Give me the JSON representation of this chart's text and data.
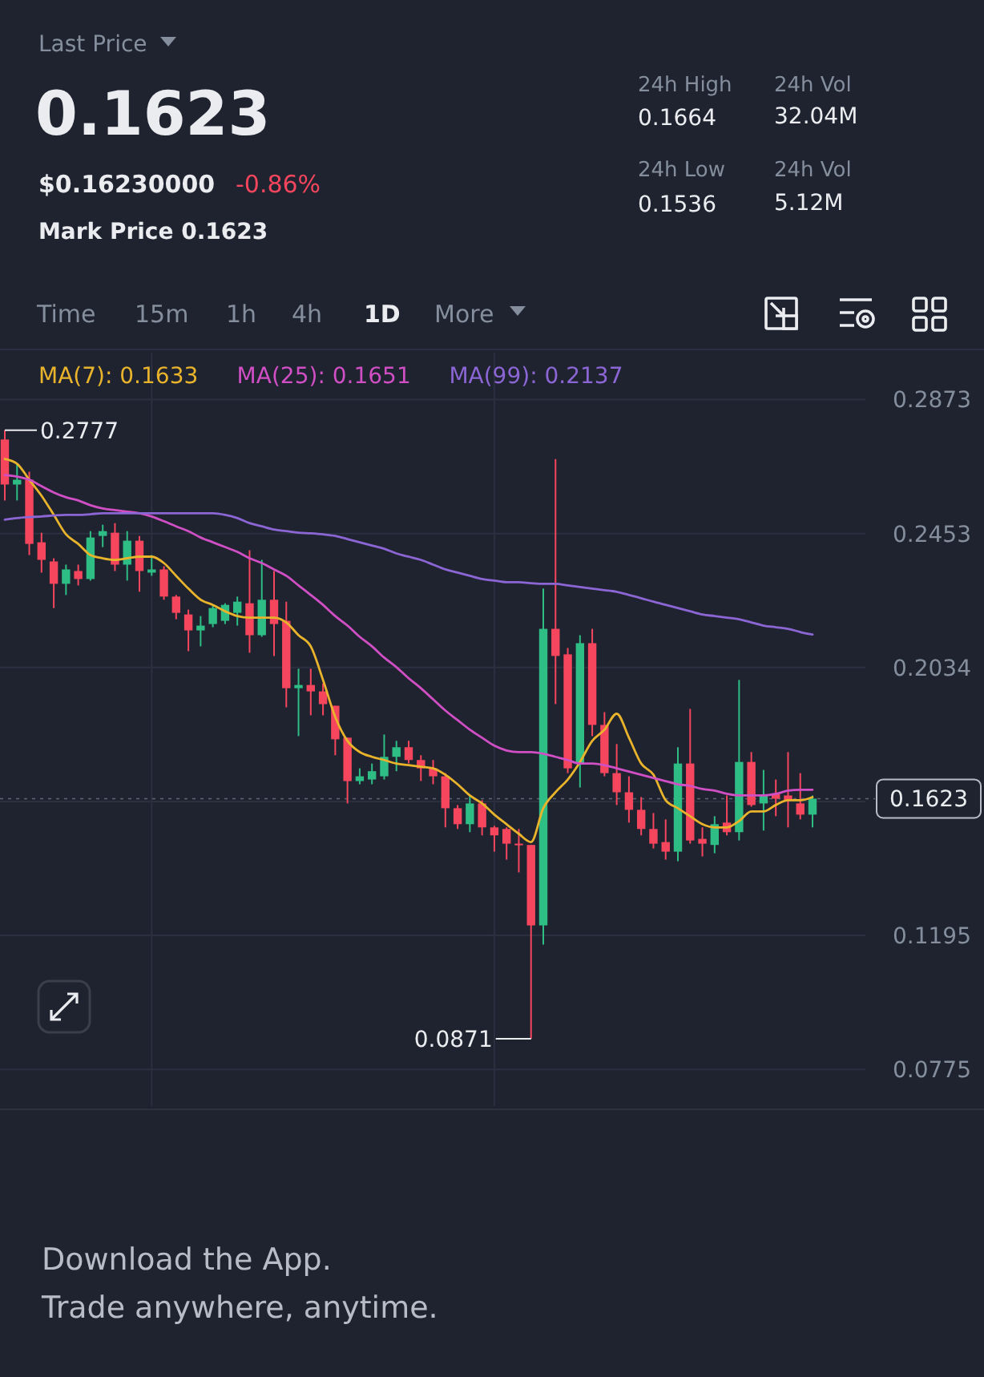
{
  "chart_data": {
    "type": "candlestick",
    "categories": [
      null,
      null,
      null,
      null,
      null,
      null,
      null,
      null,
      null,
      null,
      null,
      null,
      null,
      null,
      null,
      null,
      null,
      null,
      null,
      null,
      null,
      null,
      null,
      null,
      null,
      null,
      null,
      null,
      null,
      null,
      null,
      null,
      null,
      null,
      null,
      null,
      null,
      null,
      null,
      null,
      null,
      null,
      null,
      null,
      null,
      null,
      null,
      null,
      null,
      null,
      null,
      null,
      null,
      null,
      null,
      null,
      null,
      null,
      null,
      null,
      null,
      null,
      null,
      null,
      null,
      null,
      null
    ],
    "ohlc": [
      [
        0.2748,
        0.2777,
        0.2557,
        0.2607
      ],
      [
        0.2607,
        0.2672,
        0.2557,
        0.2622
      ],
      [
        0.2622,
        0.2647,
        0.2386,
        0.2421
      ],
      [
        0.2426,
        0.2456,
        0.2331,
        0.2371
      ],
      [
        0.2366,
        0.2376,
        0.222,
        0.2296
      ],
      [
        0.2296,
        0.2356,
        0.2261,
        0.2341
      ],
      [
        0.2336,
        0.2356,
        0.2291,
        0.2311
      ],
      [
        0.2311,
        0.2461,
        0.2306,
        0.2441
      ],
      [
        0.2446,
        0.2481,
        0.2411,
        0.2461
      ],
      [
        0.2456,
        0.2486,
        0.2336,
        0.2356
      ],
      [
        0.2356,
        0.2461,
        0.2306,
        0.2431
      ],
      [
        0.2431,
        0.2446,
        0.2271,
        0.2336
      ],
      [
        0.2331,
        0.2386,
        0.2321,
        0.2341
      ],
      [
        0.2341,
        0.2351,
        0.2246,
        0.2256
      ],
      [
        0.2256,
        0.2261,
        0.2185,
        0.2205
      ],
      [
        0.22,
        0.2215,
        0.2085,
        0.215
      ],
      [
        0.215,
        0.2195,
        0.21,
        0.2165
      ],
      [
        0.217,
        0.223,
        0.216,
        0.222
      ],
      [
        0.218,
        0.2235,
        0.217,
        0.223
      ],
      [
        0.2205,
        0.2256,
        0.2165,
        0.224
      ],
      [
        0.2235,
        0.2401,
        0.208,
        0.2135
      ],
      [
        0.2135,
        0.2371,
        0.213,
        0.2246
      ],
      [
        0.2246,
        0.2336,
        0.207,
        0.217
      ],
      [
        0.218,
        0.224,
        0.1909,
        0.1969
      ],
      [
        0.1969,
        0.203,
        0.1819,
        0.1979
      ],
      [
        0.1979,
        0.203,
        0.1884,
        0.1959
      ],
      [
        0.1959,
        0.1984,
        0.1884,
        0.1919
      ],
      [
        0.1914,
        0.1914,
        0.1759,
        0.1809
      ],
      [
        0.1814,
        0.1814,
        0.1608,
        0.1678
      ],
      [
        0.1678,
        0.1718,
        0.1668,
        0.1693
      ],
      [
        0.1683,
        0.1733,
        0.1668,
        0.1709
      ],
      [
        0.1693,
        0.1824,
        0.1683,
        0.1754
      ],
      [
        0.1754,
        0.1804,
        0.1709,
        0.1784
      ],
      [
        0.1784,
        0.1804,
        0.1733,
        0.1744
      ],
      [
        0.1744,
        0.1759,
        0.1678,
        0.1718
      ],
      [
        0.1718,
        0.1744,
        0.1668,
        0.1693
      ],
      [
        0.1693,
        0.1703,
        0.1533,
        0.1593
      ],
      [
        0.1593,
        0.1603,
        0.1528,
        0.1543
      ],
      [
        0.1543,
        0.1633,
        0.1518,
        0.1608
      ],
      [
        0.1608,
        0.1618,
        0.1508,
        0.1533
      ],
      [
        0.1533,
        0.1538,
        0.1457,
        0.1508
      ],
      [
        0.1528,
        0.1533,
        0.1432,
        0.1482
      ],
      [
        0.1482,
        0.1528,
        0.1392,
        0.1478
      ],
      [
        0.1478,
        0.1478,
        0.0871,
        0.1226
      ],
      [
        0.1226,
        0.2281,
        0.1166,
        0.2155
      ],
      [
        0.2155,
        0.2687,
        0.1919,
        0.207
      ],
      [
        0.2075,
        0.2095,
        0.1703,
        0.1718
      ],
      [
        0.1733,
        0.2135,
        0.1658,
        0.211
      ],
      [
        0.211,
        0.2155,
        0.1819,
        0.1854
      ],
      [
        0.1854,
        0.1894,
        0.1693,
        0.1703
      ],
      [
        0.1703,
        0.1794,
        0.1603,
        0.1643
      ],
      [
        0.1643,
        0.1693,
        0.1548,
        0.1588
      ],
      [
        0.1588,
        0.1628,
        0.1508,
        0.1528
      ],
      [
        0.1528,
        0.1578,
        0.1467,
        0.1482
      ],
      [
        0.1487,
        0.1558,
        0.1432,
        0.1457
      ],
      [
        0.1457,
        0.1784,
        0.1427,
        0.1733
      ],
      [
        0.1733,
        0.1904,
        0.1482,
        0.1492
      ],
      [
        0.1497,
        0.1533,
        0.1442,
        0.1482
      ],
      [
        0.1478,
        0.1568,
        0.1452,
        0.1543
      ],
      [
        0.1548,
        0.1633,
        0.1508,
        0.1518
      ],
      [
        0.1518,
        0.1995,
        0.1492,
        0.1738
      ],
      [
        0.1738,
        0.1769,
        0.1598,
        0.1603
      ],
      [
        0.1608,
        0.1713,
        0.1523,
        0.1633
      ],
      [
        0.1638,
        0.1683,
        0.1568,
        0.1623
      ],
      [
        0.1633,
        0.1769,
        0.1533,
        0.1618
      ],
      [
        0.1608,
        0.1703,
        0.1558,
        0.1573
      ],
      [
        0.1573,
        0.1633,
        0.1533,
        0.1623
      ]
    ],
    "series": [
      {
        "type": "line",
        "name": "MA(7): 0.1633",
        "color": "#e9b42b",
        "values": [
          0.2687,
          0.2672,
          0.2622,
          0.2572,
          0.2512,
          0.2451,
          0.2421,
          0.2386,
          0.2376,
          0.2371,
          0.2376,
          0.2381,
          0.2381,
          0.2361,
          0.2321,
          0.2281,
          0.2246,
          0.223,
          0.221,
          0.2195,
          0.219,
          0.219,
          0.219,
          0.2175,
          0.2135,
          0.21,
          0.1995,
          0.1879,
          0.1804,
          0.1769,
          0.1754,
          0.1744,
          0.1733,
          0.1728,
          0.1723,
          0.1718,
          0.1698,
          0.1668,
          0.1633,
          0.1608,
          0.1573,
          0.1543,
          0.1513,
          0.1487,
          0.1593,
          0.1643,
          0.1683,
          0.1738,
          0.1804,
          0.1839,
          0.1889,
          0.1814,
          0.1733,
          0.1698,
          0.1618,
          0.1593,
          0.1568,
          0.1543,
          0.1533,
          0.1533,
          0.1553,
          0.1583,
          0.1583,
          0.1603,
          0.1618,
          0.1618,
          0.1628
        ]
      },
      {
        "type": "line",
        "name": "MA(25): 0.1651",
        "color": "#d04fc4",
        "values": [
          0.2637,
          0.2632,
          0.2622,
          0.2602,
          0.2582,
          0.2567,
          0.2557,
          0.2542,
          0.2532,
          0.2527,
          0.2522,
          0.2517,
          0.2507,
          0.2492,
          0.2476,
          0.2461,
          0.2441,
          0.2426,
          0.2411,
          0.2396,
          0.2376,
          0.2361,
          0.2341,
          0.2321,
          0.2291,
          0.2261,
          0.223,
          0.2195,
          0.2165,
          0.213,
          0.21,
          0.2065,
          0.2035,
          0.2,
          0.1969,
          0.1934,
          0.1899,
          0.1869,
          0.1839,
          0.1814,
          0.1789,
          0.1774,
          0.1769,
          0.1769,
          0.1764,
          0.1754,
          0.1744,
          0.1733,
          0.1733,
          0.1728,
          0.1718,
          0.1708,
          0.1698,
          0.1688,
          0.1678,
          0.1668,
          0.1663,
          0.1653,
          0.1648,
          0.1638,
          0.1633,
          0.1633,
          0.1633,
          0.1638,
          0.1648,
          0.1651,
          0.1651
        ]
      },
      {
        "type": "line",
        "name": "MA(99): 0.2137",
        "color": "#8b66d4",
        "values": [
          0.2497,
          0.2502,
          0.2505,
          0.2507,
          0.251,
          0.2512,
          0.2512,
          0.2514,
          0.2517,
          0.2517,
          0.2517,
          0.2517,
          0.2517,
          0.2517,
          0.2517,
          0.2517,
          0.2517,
          0.2517,
          0.2512,
          0.2502,
          0.2486,
          0.2476,
          0.2466,
          0.2461,
          0.2456,
          0.2454,
          0.2451,
          0.2446,
          0.2436,
          0.2426,
          0.2416,
          0.2406,
          0.2391,
          0.2381,
          0.2371,
          0.2356,
          0.2341,
          0.2331,
          0.2321,
          0.2311,
          0.2306,
          0.2301,
          0.2301,
          0.2298,
          0.2296,
          0.2296,
          0.2291,
          0.2286,
          0.2281,
          0.2276,
          0.2271,
          0.2261,
          0.2251,
          0.224,
          0.223,
          0.222,
          0.221,
          0.22,
          0.2195,
          0.219,
          0.2185,
          0.2175,
          0.2165,
          0.216,
          0.2155,
          0.2145,
          0.2137
        ]
      }
    ],
    "ylim": [
      0.066,
      0.302
    ],
    "yticks": [
      0.2873,
      0.2453,
      0.2034,
      {
        "value": 0.1614,
        "label": null
      },
      0.1195,
      0.0775
    ],
    "grid": true,
    "legend": "top",
    "ref_lines": [
      {
        "axis": "y",
        "value": 0.1623,
        "label": "0.1623",
        "line_style": "dotted"
      }
    ],
    "annotations": [
      "Last Price",
      "0.1623",
      "$0.16230000",
      "-0.86%",
      "Mark Price 0.1623",
      "24h High",
      "0.1664",
      "24h Low",
      "0.1536",
      "24h Vol",
      "32.04M",
      "24h Vol",
      "5.12M",
      "Time",
      "15m",
      "1h",
      "4h",
      "1D",
      "More",
      "Download the App.",
      "Trade anywhere, anytime.",
      "0.2777",
      "0.0871"
    ]
  }
}
